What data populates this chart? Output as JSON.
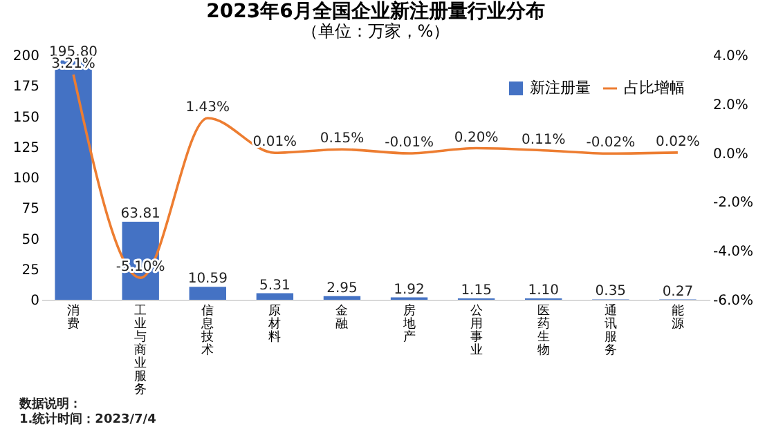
{
  "chart_data": {
    "type": "bar",
    "title": "2023年6月全国企业新注册量行业分布",
    "subtitle": "（单位：万家，%）",
    "categories": [
      "消费",
      "工业与商业服务",
      "信息技术",
      "原材料",
      "金融",
      "房地产",
      "公用事业",
      "医药生物",
      "通讯服务",
      "能源"
    ],
    "series": [
      {
        "name": "新注册量",
        "color": "#4472c4",
        "values": [
          195.8,
          63.81,
          10.59,
          5.31,
          2.95,
          1.92,
          1.15,
          1.1,
          0.35,
          0.27
        ],
        "value_labels": [
          "195.80",
          "63.81",
          "10.59",
          "5.31",
          "2.95",
          "1.92",
          "1.15",
          "1.10",
          "0.35",
          "0.27"
        ]
      },
      {
        "name": "占比增幅",
        "type": "line",
        "axis": "y2",
        "color": "#ed7d31",
        "values": [
          3.21,
          -5.1,
          1.43,
          0.01,
          0.15,
          -0.01,
          0.2,
          0.11,
          -0.02,
          0.02
        ],
        "value_labels": [
          "3.21%",
          "-5.10%",
          "1.43%",
          "0.01%",
          "0.15%",
          "-0.01%",
          "0.20%",
          "0.11%",
          "-0.02%",
          "0.02%"
        ]
      }
    ],
    "ylim": [
      0,
      200
    ],
    "yticks": [
      0,
      25,
      50,
      75,
      100,
      125,
      150,
      175,
      200
    ],
    "y2lim": [
      -6,
      4
    ],
    "y2ticks": [
      {
        "value": -6,
        "label": "-6.0%"
      },
      {
        "value": -4,
        "label": "-4.0%"
      },
      {
        "value": -2,
        "label": "-2.0%"
      },
      {
        "value": 0,
        "label": "0.0%"
      },
      {
        "value": 2,
        "label": "2.0%"
      },
      {
        "value": 4,
        "label": "4.0%"
      }
    ],
    "grid": false,
    "legend": "top right",
    "marker": "none",
    "annotations": [
      "数据说明：",
      "1.统计时间：2023/7/4"
    ]
  }
}
